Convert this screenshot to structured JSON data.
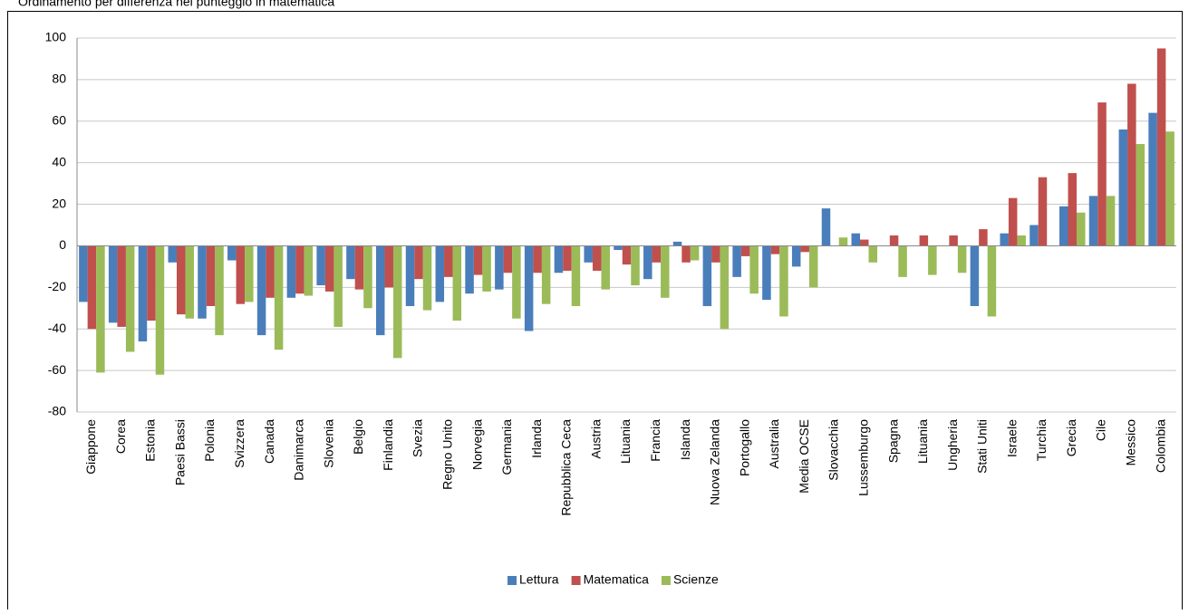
{
  "chart_data": {
    "type": "bar",
    "title": "Ordinamento per differenza nel punteggio in matematica",
    "categories": [
      "Giappone",
      "Corea",
      "Estonia",
      "Paesi Bassi",
      "Polonia",
      "Svizzera",
      "Canada",
      "Danimarca",
      "Slovenia",
      "Belgio",
      "Finlandia",
      "Svezia",
      "Regno Unito",
      "Norvegia",
      "Germania",
      "Irlanda",
      "Repubblica Ceca",
      "Austria",
      "Lituania",
      "Francia",
      "Islanda",
      "Nuova Zelanda",
      "Portogallo",
      "Australia",
      "Media OCSE",
      "Slovacchia",
      "Lussemburgo",
      "Spagna",
      "Lituania",
      "Ungheria",
      "Stati Uniti",
      "Israele",
      "Turchia",
      "Grecia",
      "Cile",
      "Messico",
      "Colombia"
    ],
    "series": [
      {
        "name": "Lettura",
        "color": "#4a7ebb",
        "values": [
          -27,
          -37,
          -46,
          -8,
          -35,
          -7,
          -43,
          -25,
          -19,
          -16,
          -43,
          -29,
          -27,
          -23,
          -21,
          -41,
          -13,
          -8,
          -2,
          -16,
          2,
          -29,
          -15,
          -26,
          -10,
          18,
          6,
          null,
          null,
          0,
          -29,
          6,
          10,
          19,
          24,
          56,
          64
        ]
      },
      {
        "name": "Matematica",
        "color": "#c0504d",
        "values": [
          -40,
          -39,
          -36,
          -33,
          -29,
          -28,
          -25,
          -23,
          -22,
          -21,
          -20,
          -16,
          -15,
          -14,
          -13,
          -13,
          -12,
          -12,
          -9,
          -8,
          -8,
          -8,
          -5,
          -4,
          -3,
          0,
          3,
          5,
          5,
          5,
          8,
          23,
          33,
          35,
          69,
          78,
          95
        ]
      },
      {
        "name": "Scienze",
        "color": "#9bbb59",
        "values": [
          -61,
          -51,
          -62,
          -35,
          -43,
          -27,
          -50,
          -24,
          -39,
          -30,
          -54,
          -31,
          -36,
          -22,
          -35,
          -28,
          -29,
          -21,
          -19,
          -25,
          -7,
          -40,
          -23,
          -34,
          -20,
          4,
          -8,
          -15,
          -14,
          -13,
          -34,
          5,
          null,
          16,
          24,
          49,
          55
        ]
      }
    ],
    "ylim": [
      -80,
      100
    ],
    "yticks": [
      -80,
      -60,
      -40,
      -20,
      0,
      20,
      40,
      60,
      80,
      100
    ],
    "grid": true,
    "legend": "bottom"
  }
}
